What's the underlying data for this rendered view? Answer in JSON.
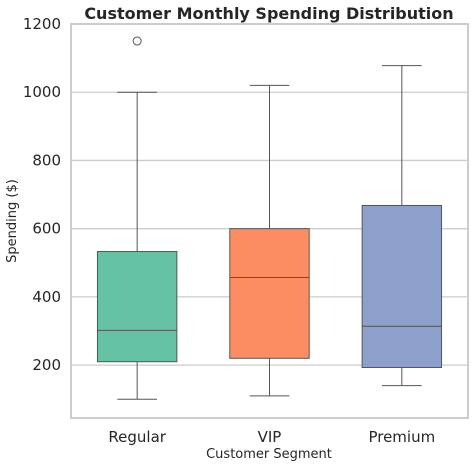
{
  "chart_data": {
    "type": "box",
    "title": "Customer Monthly Spending Distribution",
    "xlabel": "Customer Segment",
    "ylabel": "Spending ($)",
    "ylim": [
      45,
      1200
    ],
    "yticks": [
      200,
      400,
      600,
      800,
      1000,
      1200
    ],
    "grid": "horizontal",
    "categories": [
      "Regular",
      "VIP",
      "Premium"
    ],
    "boxes": [
      {
        "category": "Regular",
        "whisker_low": 100,
        "q1": 210,
        "median": 302,
        "q3": 533,
        "whisker_high": 1000,
        "outliers": [
          1150
        ],
        "color": "#66c2a5"
      },
      {
        "category": "VIP",
        "whisker_low": 110,
        "q1": 220,
        "median": 457,
        "q3": 600,
        "whisker_high": 1020,
        "outliers": [],
        "color": "#fc8d62"
      },
      {
        "category": "Premium",
        "whisker_low": 140,
        "q1": 193,
        "median": 314,
        "q3": 668,
        "whisker_high": 1078,
        "outliers": [],
        "color": "#8da0cb"
      }
    ],
    "colors": {
      "grid": "#cccccc",
      "frame": "#cccccc",
      "line": "#555555",
      "text": "#262626"
    }
  }
}
